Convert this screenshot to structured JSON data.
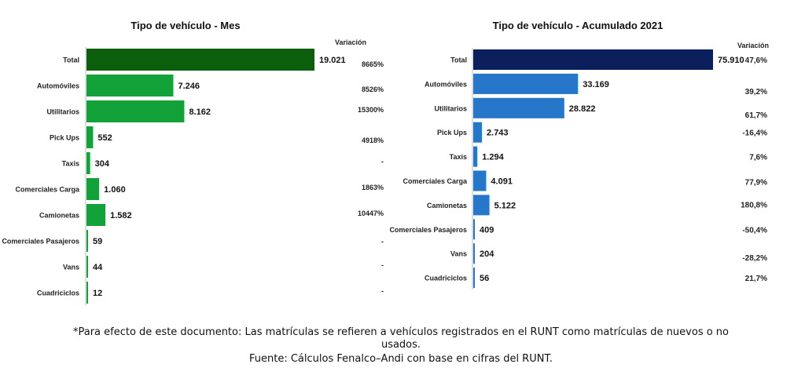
{
  "charts": [
    {
      "title": "Tipo de vehículo - Mes",
      "variation_header": "Variación",
      "colors": {
        "total": "#0b5e0b",
        "bars": "#13a23a"
      },
      "chart_data": {
        "type": "bar",
        "orientation": "horizontal",
        "title": "Tipo de vehículo - Mes",
        "categories": [
          "Total",
          "Automóviles",
          "Utilitarios",
          "Pick Ups",
          "Taxis",
          "Comerciales Carga",
          "Camionetas",
          "Comerciales Pasajeros",
          "Vans",
          "Cuadriciclos"
        ],
        "values": [
          19021,
          7246,
          8162,
          552,
          304,
          1060,
          1582,
          59,
          44,
          12
        ],
        "value_labels": [
          "19.021",
          "7.246",
          "8.162",
          "552",
          "304",
          "1.060",
          "1.582",
          "59",
          "44",
          "12"
        ],
        "variation": [
          "8665%",
          "8526%",
          "15300%",
          "4918%",
          "-",
          "1863%",
          "10447%",
          "-",
          "-",
          "-"
        ]
      }
    },
    {
      "title": "Tipo de vehículo - Acumulado 2021",
      "variation_header": "Variación",
      "colors": {
        "total": "#0a1f5c",
        "bars": "#2676c9"
      },
      "chart_data": {
        "type": "bar",
        "orientation": "horizontal",
        "title": "Tipo de vehículo - Acumulado 2021",
        "categories": [
          "Total",
          "Automóviles",
          "Utilitarios",
          "Pick Ups",
          "Taxis",
          "Comerciales Carga",
          "Camionetas",
          "Comerciales Pasajeros",
          "Vans",
          "Cuadriciclos"
        ],
        "values": [
          75910,
          33169,
          28822,
          2743,
          1294,
          4091,
          5122,
          409,
          204,
          56
        ],
        "value_labels": [
          "75.910",
          "33.169",
          "28.822",
          "2.743",
          "1.294",
          "4.091",
          "5.122",
          "409",
          "204",
          "56"
        ],
        "variation": [
          "47,6%",
          "39,2%",
          "61,7%",
          "-16,4%",
          "7,6%",
          "77,9%",
          "180,8%",
          "-50,4%",
          "-28,2%",
          "21,7%"
        ]
      }
    }
  ],
  "footnote": {
    "line1": "*Para efecto de este documento: Las matrículas se refieren a vehículos registrados en el RUNT como matrículas de nuevos o no",
    "line2": "usados.",
    "source": "Fuente: Cálculos Fenalco–Andi con base en cifras del RUNT."
  }
}
